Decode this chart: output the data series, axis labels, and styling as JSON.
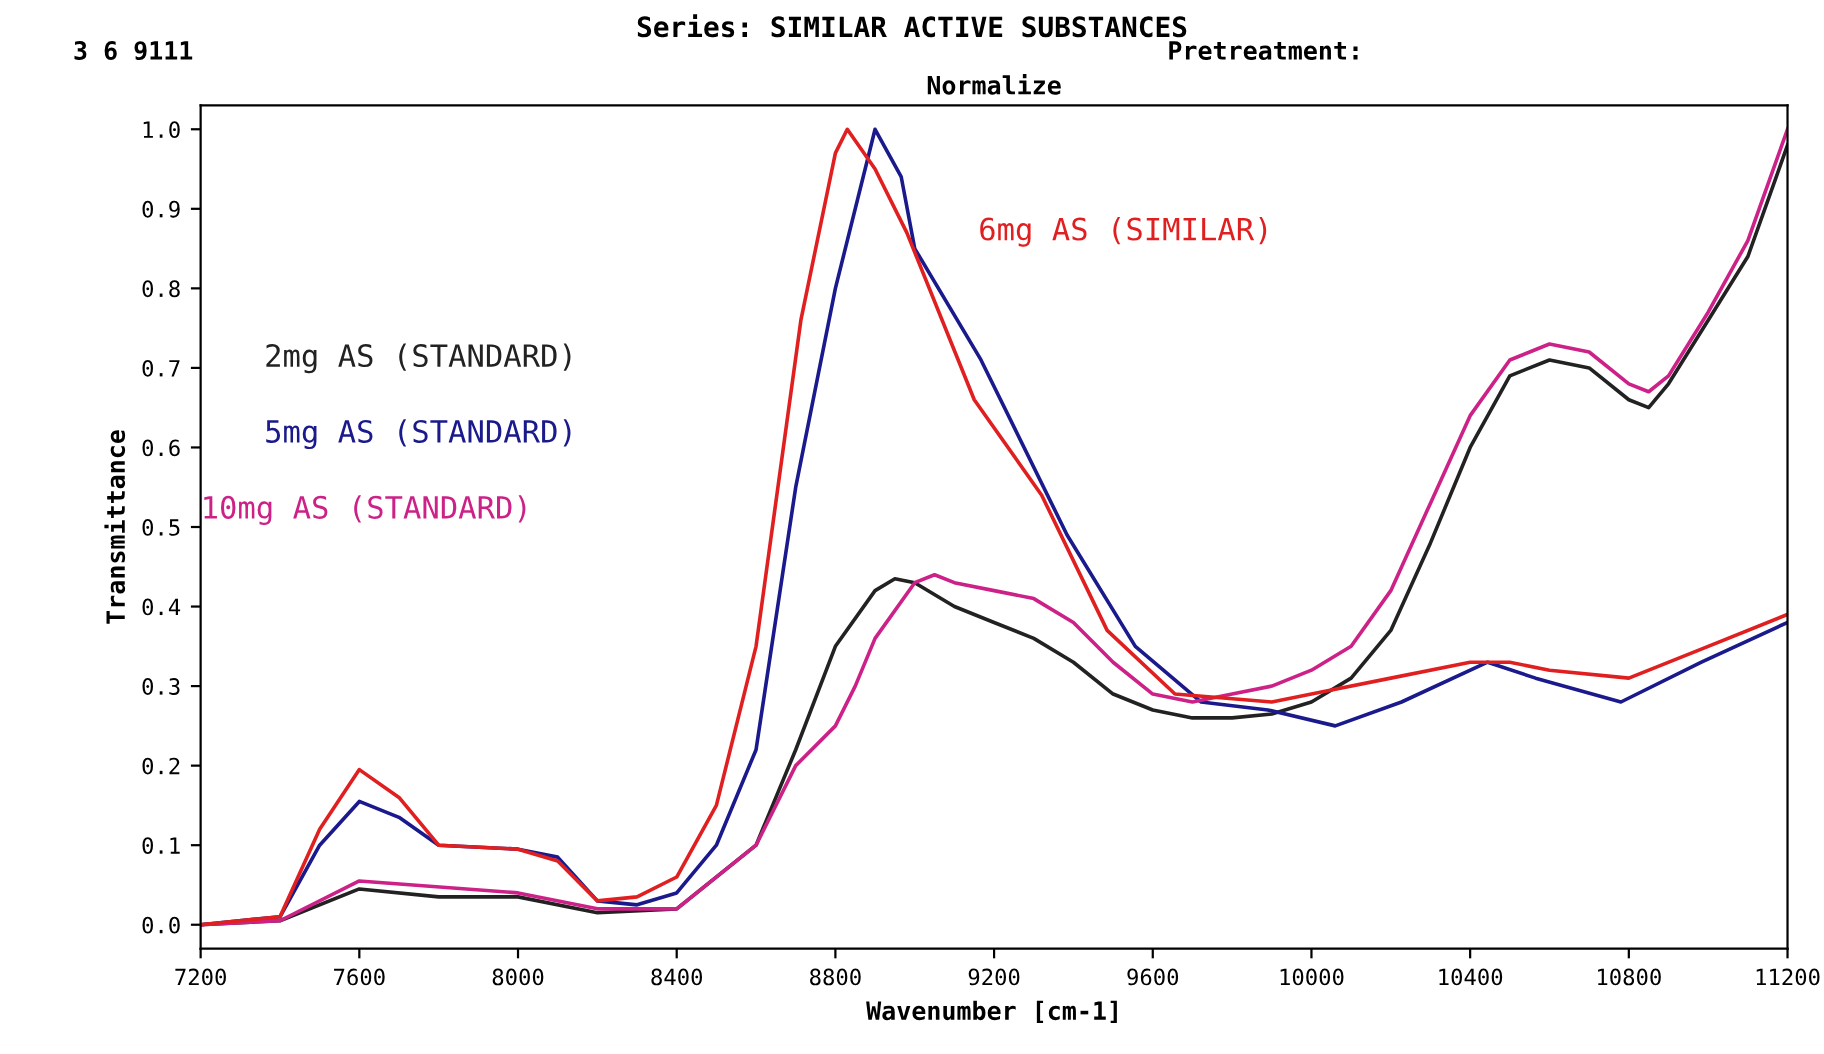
{
  "chart_data": {
    "type": "line",
    "title": "Series: SIMILAR ACTIVE SUBSTANCES",
    "subtitle": "Normalize",
    "xlabel": "Wavenumber [cm-1]",
    "ylabel": "Transmittance",
    "annotations": [
      "3 6 9111",
      "Pretreatment:"
    ],
    "xlim": [
      7200,
      11200
    ],
    "xticks": [
      7200,
      7600,
      8000,
      8400,
      8800,
      9200,
      9600,
      10000,
      10400,
      10800,
      11200
    ],
    "ylim": [
      -0.03,
      1.03
    ],
    "yticks": [
      {
        "value": 0,
        "label": "0.0"
      },
      0.1,
      0.2,
      0.3,
      0.4,
      0.5,
      0.6,
      0.7,
      0.8,
      0.9,
      {
        "value": 1,
        "label": "1.0"
      }
    ],
    "grid": false,
    "legend": false,
    "marker": "none",
    "line_style": "solid",
    "series": [
      {
        "name": "2mg AS (STANDARD)",
        "color": "#222222",
        "x": [
          7200,
          7400,
          7600,
          7800,
          8000,
          8200,
          8400,
          8600,
          8700,
          8800,
          8900,
          8950,
          9000,
          9100,
          9200,
          9300,
          9400,
          9500,
          9600,
          9700,
          9800,
          9900,
          10000,
          10100,
          10200,
          10300,
          10400,
          10500,
          10600,
          10700,
          10800,
          10850,
          10900,
          11000,
          11100,
          11200
        ],
        "values": [
          0,
          0.005,
          0.045,
          0.035,
          0.035,
          0.015,
          0.02,
          0.1,
          0.22,
          0.35,
          0.42,
          0.435,
          0.43,
          0.4,
          0.38,
          0.36,
          0.33,
          0.29,
          0.27,
          0.26,
          0.26,
          0.265,
          0.28,
          0.31,
          0.37,
          0.48,
          0.6,
          0.69,
          0.71,
          0.7,
          0.66,
          0.65,
          0.68,
          0.76,
          0.84,
          0.98
        ]
      },
      {
        "name": "5mg AS (STANDARD)",
        "color": "#1a1a8c",
        "x": [
          7200,
          7400,
          7500,
          7600,
          7700,
          7800,
          8000,
          8100,
          8200,
          8300,
          8400,
          8500,
          8600,
          8700,
          8800,
          8900,
          8966,
          9000,
          9167,
          9384,
          9556,
          9722,
          9890,
          10060,
          10227,
          10444,
          10565,
          10780,
          10983,
          11200
        ],
        "values": [
          0,
          0.01,
          0.1,
          0.155,
          0.135,
          0.1,
          0.095,
          0.085,
          0.03,
          0.025,
          0.04,
          0.1,
          0.22,
          0.55,
          0.8,
          1.0,
          0.94,
          0.85,
          0.71,
          0.49,
          0.35,
          0.28,
          0.27,
          0.25,
          0.28,
          0.33,
          0.31,
          0.28,
          0.33,
          0.38
        ]
      },
      {
        "name": "10mg AS (STANDARD)",
        "color": "#cc2288",
        "x": [
          7200,
          7400,
          7600,
          8000,
          8200,
          8400,
          8600,
          8700,
          8800,
          8850,
          8900,
          9000,
          9050,
          9100,
          9200,
          9300,
          9400,
          9500,
          9600,
          9700,
          9800,
          9900,
          10000,
          10100,
          10200,
          10300,
          10400,
          10500,
          10600,
          10700,
          10800,
          10850,
          10900,
          11000,
          11100,
          11200
        ],
        "values": [
          0,
          0.005,
          0.055,
          0.04,
          0.02,
          0.02,
          0.1,
          0.2,
          0.25,
          0.3,
          0.36,
          0.43,
          0.44,
          0.43,
          0.42,
          0.41,
          0.38,
          0.33,
          0.29,
          0.28,
          0.29,
          0.3,
          0.32,
          0.35,
          0.42,
          0.53,
          0.64,
          0.71,
          0.73,
          0.72,
          0.68,
          0.67,
          0.69,
          0.77,
          0.86,
          1.0
        ]
      },
      {
        "name": "6mg AS (SIMILAR)",
        "color": "#e02020",
        "x": [
          7200,
          7400,
          7500,
          7600,
          7700,
          7800,
          8000,
          8100,
          8200,
          8300,
          8400,
          8500,
          8600,
          8713,
          8800,
          8830,
          8900,
          8980,
          9150,
          9320,
          9485,
          9656,
          9900,
          10000,
          10200,
          10400,
          10500,
          10600,
          10800,
          11000,
          11200
        ],
        "values": [
          0,
          0.01,
          0.12,
          0.195,
          0.16,
          0.1,
          0.095,
          0.08,
          0.03,
          0.035,
          0.06,
          0.15,
          0.35,
          0.76,
          0.97,
          1.0,
          0.95,
          0.87,
          0.66,
          0.54,
          0.37,
          0.29,
          0.28,
          0.29,
          0.31,
          0.33,
          0.33,
          0.32,
          0.31,
          0.35,
          0.39
        ]
      }
    ]
  }
}
